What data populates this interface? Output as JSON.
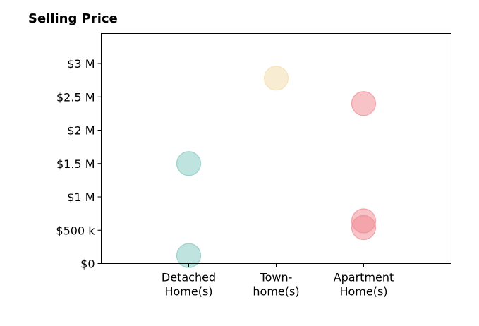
{
  "chart_data": {
    "type": "scatter",
    "title": "Selling Price",
    "categories": [
      "Detached Home(s)",
      "Town-home(s)",
      "Apartment Home(s)"
    ],
    "category_labels": [
      [
        "Detached",
        "Home(s)"
      ],
      [
        "Town-",
        "home(s)"
      ],
      [
        "Apartment",
        "Home(s)"
      ]
    ],
    "ylim": [
      0,
      3450000
    ],
    "yticks": [
      {
        "value": 0,
        "label": "$0"
      },
      {
        "value": 500000,
        "label": "$500 k"
      },
      {
        "value": 1000000,
        "label": "$1 M"
      },
      {
        "value": 1500000,
        "label": "$1.5 M"
      },
      {
        "value": 2000000,
        "label": "$2 M"
      },
      {
        "value": 2500000,
        "label": "$2.5 M"
      },
      {
        "value": 3000000,
        "label": "$3 M"
      }
    ],
    "points": [
      {
        "category": "Detached Home(s)",
        "value": 120000
      },
      {
        "category": "Detached Home(s)",
        "value": 1500000
      },
      {
        "category": "Town-home(s)",
        "value": 2780000
      },
      {
        "category": "Apartment Home(s)",
        "value": 2400000
      },
      {
        "category": "Apartment Home(s)",
        "value": 640000
      },
      {
        "category": "Apartment Home(s)",
        "value": 540000
      }
    ],
    "colors": {
      "Detached Home(s)": "#7fc8c0",
      "Town-home(s)": "#f2dca8",
      "Apartment Home(s)": "#f08890"
    },
    "grid": false,
    "legend": "none"
  }
}
